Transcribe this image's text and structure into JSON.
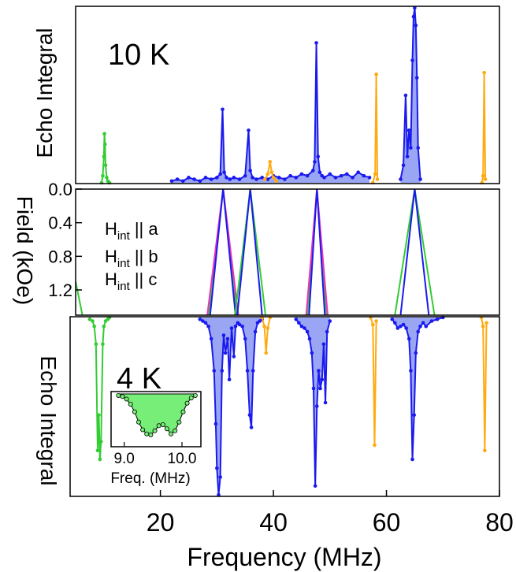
{
  "colors": {
    "green": "#33cc33",
    "magenta": "#ee33bb",
    "blue": "#1a1aee",
    "orange": "#ffaa11",
    "blue_fill": "#9aa6f4",
    "green_fill": "#77ee77",
    "frame": "#000000"
  },
  "x_axis": {
    "label": "Frequency (MHz)",
    "range": [
      5,
      80
    ],
    "ticks": [
      20,
      40,
      60,
      80
    ],
    "tick_labels": [
      "20",
      "40",
      "60",
      "80"
    ]
  },
  "chart_data": [
    {
      "type": "line",
      "panel": "top",
      "annotation": "10 K",
      "ylabel": "Echo Integral",
      "ylim": [
        0,
        1.0
      ],
      "series": [
        {
          "color_key": "green",
          "x": [
            9.6,
            9.8,
            10.0,
            10.1,
            10.2,
            10.3,
            10.5,
            10.7,
            11.0
          ],
          "y": [
            0.0,
            0.04,
            0.15,
            0.28,
            0.22,
            0.1,
            0.03,
            0.01,
            0.0
          ]
        },
        {
          "color_key": "blue",
          "x": [
            22,
            23,
            24,
            25,
            26,
            27,
            28,
            29,
            30,
            30.6,
            31.0,
            31.3,
            31.7,
            32.3,
            33,
            34,
            35.0,
            35.6,
            35.9,
            36.3,
            37,
            38,
            39,
            40,
            41,
            42,
            43,
            44,
            45,
            46,
            47,
            47.3,
            47.6,
            47.9,
            48.2,
            48.6,
            49,
            50,
            51,
            52,
            53,
            54,
            55,
            56,
            57
          ],
          "y": [
            0.01,
            0.02,
            0.01,
            0.03,
            0.02,
            0.01,
            0.03,
            0.02,
            0.03,
            0.05,
            0.42,
            0.06,
            0.03,
            0.02,
            0.03,
            0.02,
            0.04,
            0.3,
            0.07,
            0.03,
            0.02,
            0.03,
            0.02,
            0.04,
            0.03,
            0.02,
            0.04,
            0.03,
            0.05,
            0.04,
            0.07,
            0.12,
            0.8,
            0.15,
            0.06,
            0.04,
            0.03,
            0.05,
            0.03,
            0.04,
            0.05,
            0.03,
            0.06,
            0.04,
            0.03
          ]
        },
        {
          "color_key": "blue",
          "x": [
            62.5,
            63.0,
            63.4,
            63.7,
            64.0,
            64.3,
            64.6,
            64.8,
            65.0,
            65.2,
            65.4,
            65.6,
            66.0
          ],
          "y": [
            0.02,
            0.1,
            0.5,
            0.15,
            0.3,
            0.2,
            0.7,
            0.95,
            1.0,
            0.9,
            0.6,
            0.2,
            0.02
          ]
        },
        {
          "color_key": "orange",
          "x": [
            38.5,
            39.0,
            39.4,
            39.7,
            40.0,
            40.5
          ],
          "y": [
            0.02,
            0.05,
            0.12,
            0.06,
            0.03,
            0.01
          ]
        },
        {
          "color_key": "orange",
          "x": [
            57.6,
            58.0,
            58.2,
            58.4
          ],
          "y": [
            0.0,
            0.05,
            0.62,
            0.02
          ]
        },
        {
          "color_key": "orange",
          "x": [
            76.9,
            77.1,
            77.3,
            77.5
          ],
          "y": [
            0.0,
            0.04,
            0.63,
            0.02
          ]
        }
      ]
    },
    {
      "type": "line",
      "panel": "middle",
      "ylabel": "Field (kOe)",
      "ylim": [
        0,
        1.5
      ],
      "ticks": [
        0.0,
        0.4,
        0.8,
        1.2
      ],
      "tick_labels": [
        "0.0",
        "0.4",
        "0.8",
        "1.2"
      ],
      "legend": [
        {
          "prefix": "H",
          "sub": "int",
          "suffix": " || a",
          "color_key": "green"
        },
        {
          "prefix": "H",
          "sub": "int",
          "suffix": " || b",
          "color_key": "magenta"
        },
        {
          "prefix": "H",
          "sub": "int",
          "suffix": " || c",
          "color_key": "blue"
        }
      ],
      "series": [
        {
          "color_key": "green",
          "x": [
            28.5,
            31.1,
            33.5
          ],
          "y": [
            1.5,
            0.0,
            1.5
          ]
        },
        {
          "color_key": "magenta",
          "x": [
            28.3,
            31.1,
            33.8
          ],
          "y": [
            1.5,
            0.0,
            1.5
          ]
        },
        {
          "color_key": "blue",
          "x": [
            28.8,
            31.1,
            33.3
          ],
          "y": [
            1.5,
            0.0,
            1.5
          ]
        },
        {
          "color_key": "green",
          "x": [
            33.2,
            35.9,
            38.6
          ],
          "y": [
            1.5,
            0.0,
            1.5
          ]
        },
        {
          "color_key": "blue",
          "x": [
            33.6,
            35.9,
            38.0
          ],
          "y": [
            1.5,
            0.0,
            1.5
          ]
        },
        {
          "color_key": "green",
          "x": [
            46.0,
            47.7,
            49.4
          ],
          "y": [
            1.5,
            0.0,
            1.5
          ]
        },
        {
          "color_key": "magenta",
          "x": [
            45.8,
            47.7,
            49.6
          ],
          "y": [
            1.5,
            0.0,
            1.5
          ]
        },
        {
          "color_key": "blue",
          "x": [
            46.3,
            47.7,
            49.1
          ],
          "y": [
            1.5,
            0.0,
            1.5
          ]
        },
        {
          "color_key": "green",
          "x": [
            61.5,
            65.0,
            68.5
          ],
          "y": [
            1.5,
            0.0,
            1.5
          ]
        },
        {
          "color_key": "blue",
          "x": [
            62.5,
            65.0,
            67.5
          ],
          "y": [
            1.5,
            0.0,
            1.5
          ]
        },
        {
          "color_key": "green",
          "x": [
            5.0,
            6.2
          ],
          "y": [
            1.1,
            1.5
          ]
        }
      ]
    },
    {
      "type": "line",
      "panel": "bottom",
      "annotation": "4 K",
      "ylabel": "Echo Integral",
      "ylim": [
        -1.0,
        0
      ],
      "series": [
        {
          "color_key": "green",
          "x": [
            7.5,
            8.0,
            8.3,
            8.6,
            8.9,
            9.1,
            9.3,
            9.5,
            9.8,
            10.0,
            10.3,
            10.7,
            11.0
          ],
          "y": [
            -0.01,
            -0.02,
            -0.05,
            -0.15,
            -0.75,
            -0.55,
            -0.8,
            -0.7,
            -0.15,
            -0.05,
            -0.02,
            -0.01,
            -0.0
          ]
        },
        {
          "color_key": "blue",
          "x": [
            27.0,
            27.5,
            28.0,
            28.5,
            29.0,
            29.5,
            29.8,
            30.0,
            30.3,
            30.6,
            30.9,
            31.2,
            31.5,
            31.9,
            32.2,
            32.6,
            33.0,
            33.3,
            33.7,
            34.0,
            34.5,
            35.0,
            35.4,
            35.8,
            36.1,
            36.4,
            36.8,
            37.2,
            37.6,
            38.0
          ],
          "y": [
            -0.01,
            -0.02,
            -0.03,
            -0.05,
            -0.12,
            -0.3,
            -0.6,
            -0.85,
            -1.0,
            -0.9,
            -0.3,
            -0.1,
            -0.2,
            -0.12,
            -0.35,
            -0.06,
            -0.22,
            -0.05,
            -0.03,
            -0.04,
            -0.05,
            -0.12,
            -0.3,
            -0.55,
            -0.62,
            -0.3,
            -0.08,
            -0.03,
            -0.02,
            -0.01
          ]
        },
        {
          "color_key": "blue",
          "x": [
            44.0,
            44.5,
            45.0,
            45.5,
            46.0,
            46.4,
            46.8,
            47.1,
            47.4,
            47.7,
            48.0,
            48.3,
            48.6,
            48.9,
            49.2,
            49.5,
            50.0
          ],
          "y": [
            -0.01,
            -0.03,
            -0.05,
            -0.06,
            -0.08,
            -0.12,
            -0.2,
            -0.4,
            -0.95,
            -0.5,
            -0.3,
            -0.4,
            -0.35,
            -0.15,
            -0.48,
            -0.08,
            -0.02
          ]
        },
        {
          "color_key": "blue",
          "x": [
            61.0,
            61.5,
            62.0,
            62.5,
            63.0,
            63.5,
            64.0,
            64.3,
            64.6,
            64.9,
            65.2,
            65.6,
            66.0,
            66.5,
            67.0,
            68.0,
            69.0,
            70.0
          ],
          "y": [
            -0.01,
            -0.03,
            -0.06,
            -0.05,
            -0.04,
            -0.06,
            -0.12,
            -0.3,
            -0.8,
            -0.55,
            -0.2,
            -0.08,
            -0.05,
            -0.03,
            -0.05,
            -0.02,
            -0.01,
            -0.0
          ]
        },
        {
          "color_key": "orange",
          "x": [
            38.0,
            38.4,
            38.7,
            39.0,
            39.4
          ],
          "y": [
            -0.0,
            -0.05,
            -0.2,
            -0.06,
            -0.0
          ]
        },
        {
          "color_key": "orange",
          "x": [
            57.2,
            57.6,
            57.9,
            58.2
          ],
          "y": [
            -0.0,
            -0.04,
            -0.72,
            -0.02
          ]
        },
        {
          "color_key": "orange",
          "x": [
            76.8,
            77.1,
            77.4,
            77.7
          ],
          "y": [
            -0.0,
            -0.05,
            -0.75,
            -0.03
          ]
        }
      ]
    },
    {
      "type": "scatter",
      "panel": "inset",
      "xlabel": "Freq. (MHz)",
      "xlim": [
        8.8,
        10.3
      ],
      "ylim": [
        -1.0,
        0
      ],
      "x_ticks": [
        9.0,
        10.0
      ],
      "x_tick_labels": [
        "9.0",
        "10.0"
      ],
      "series": [
        {
          "color_key": "green_fill",
          "x": [
            8.9,
            8.97,
            9.04,
            9.11,
            9.18,
            9.25,
            9.32,
            9.39,
            9.46,
            9.53,
            9.6,
            9.67,
            9.74,
            9.81,
            9.88,
            9.95,
            10.02,
            10.09,
            10.16,
            10.23
          ],
          "y": [
            -0.03,
            -0.05,
            -0.1,
            -0.2,
            -0.35,
            -0.55,
            -0.7,
            -0.78,
            -0.8,
            -0.72,
            -0.62,
            -0.6,
            -0.68,
            -0.78,
            -0.72,
            -0.55,
            -0.35,
            -0.18,
            -0.08,
            -0.03
          ]
        }
      ]
    }
  ]
}
